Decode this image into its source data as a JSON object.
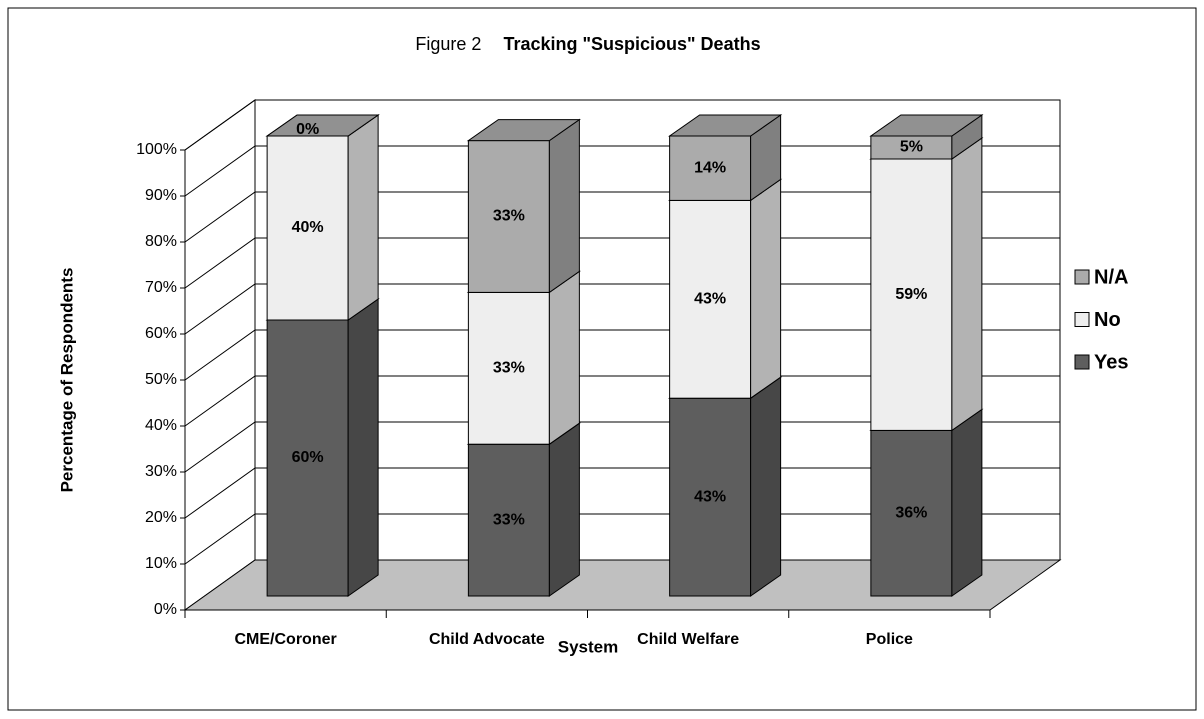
{
  "chart_data": {
    "type": "bar3d_stacked",
    "figure": "Figure 2",
    "title": "Tracking \"Suspicious\" Deaths",
    "x_label": "System",
    "y_label": "Percentage of Respondents",
    "categories": [
      "CME/Coroner",
      "Child Advocate",
      "Child Welfare",
      "Police"
    ],
    "series": [
      {
        "name": "Yes",
        "color": "#5e5e5e",
        "values": [
          60,
          33,
          43,
          36
        ],
        "value_labels": [
          "60%",
          "33%",
          "43%",
          "36%"
        ]
      },
      {
        "name": "No",
        "color": "#eeeeee",
        "values": [
          40,
          33,
          43,
          59
        ],
        "value_labels": [
          "40%",
          "33%",
          "43%",
          "59%"
        ]
      },
      {
        "name": "N/A",
        "color": "#ababab",
        "values": [
          0,
          33,
          14,
          5
        ],
        "value_labels": [
          "0%",
          "33%",
          "14%",
          "5%"
        ]
      }
    ],
    "ylim": [
      0,
      100
    ],
    "yticks": [
      {
        "value": 0,
        "label": "0%"
      },
      {
        "value": 10,
        "label": "10%"
      },
      {
        "value": 20,
        "label": "20%"
      },
      {
        "value": 30,
        "label": "30%"
      },
      {
        "value": 40,
        "label": "40%"
      },
      {
        "value": 50,
        "label": "50%"
      },
      {
        "value": 60,
        "label": "60%"
      },
      {
        "value": 70,
        "label": "70%"
      },
      {
        "value": 80,
        "label": "80%"
      },
      {
        "value": 90,
        "label": "90%"
      },
      {
        "value": 100,
        "label": "100%"
      }
    ],
    "grid": true,
    "legend": "right"
  }
}
